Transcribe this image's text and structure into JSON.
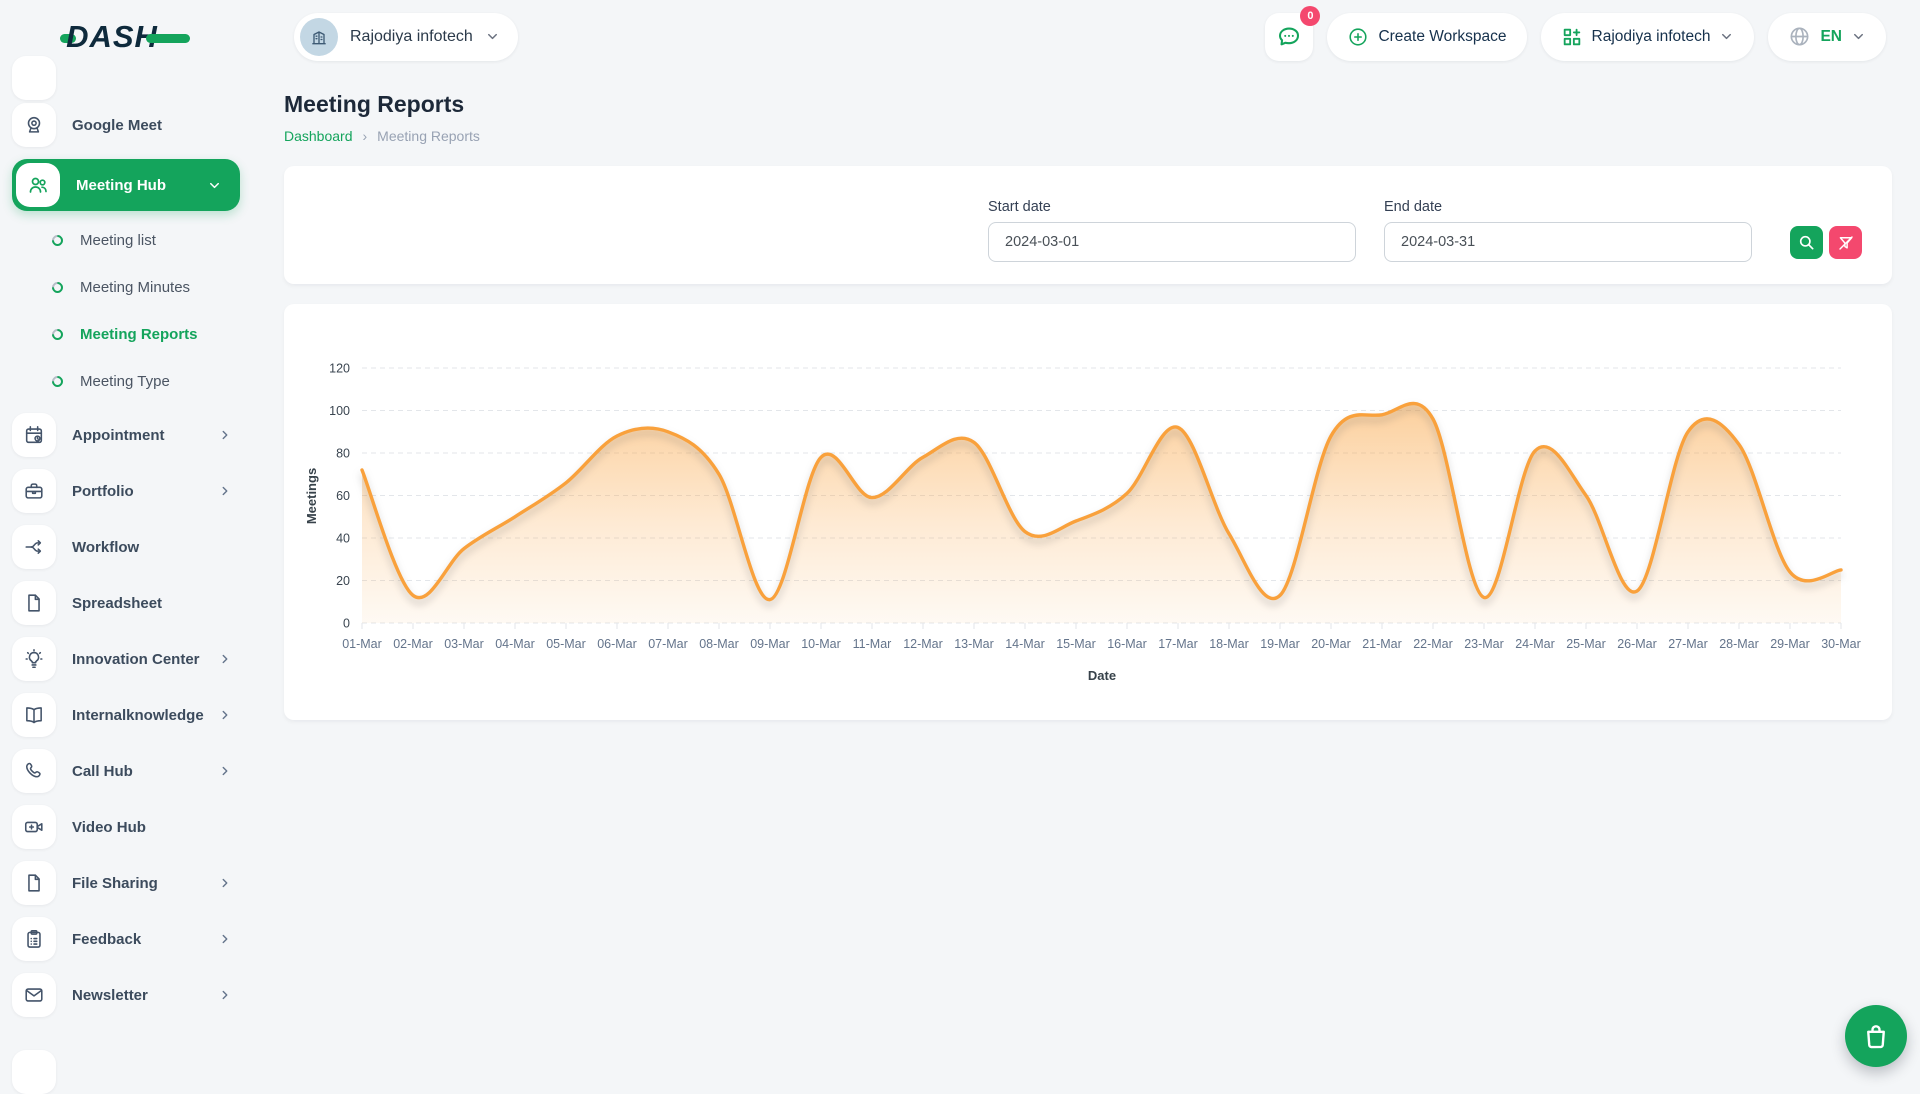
{
  "brand": {
    "name": "DASH"
  },
  "topbar": {
    "workspace_selector": {
      "label": "Rajodiya infotech",
      "avatar_icon": "building-icon"
    },
    "messages": {
      "icon": "chat-icon",
      "badge": "0"
    },
    "create_workspace_label": "Create Workspace",
    "company_dropdown": {
      "icon": "grid-plus-icon",
      "label": "Rajodiya infotech"
    },
    "language_dropdown": {
      "icon": "globe-icon",
      "label": "EN"
    }
  },
  "sidebar": {
    "items": [
      {
        "label": "Google Meet",
        "icon": "webcam-icon",
        "chevron": false
      },
      {
        "label": "Meeting Hub",
        "icon": "users-icon",
        "active": true,
        "expanded": true,
        "children": [
          {
            "label": "Meeting list",
            "active": false
          },
          {
            "label": "Meeting Minutes",
            "active": false
          },
          {
            "label": "Meeting Reports",
            "active": true
          },
          {
            "label": "Meeting Type",
            "active": false
          }
        ]
      },
      {
        "label": "Appointment",
        "icon": "calendar-icon",
        "chevron": true
      },
      {
        "label": "Portfolio",
        "icon": "briefcase-icon",
        "chevron": true
      },
      {
        "label": "Workflow",
        "icon": "workflow-icon",
        "chevron": false
      },
      {
        "label": "Spreadsheet",
        "icon": "file-icon",
        "chevron": false
      },
      {
        "label": "Innovation Center",
        "icon": "lightbulb-icon",
        "chevron": true
      },
      {
        "label": "Internalknowledge",
        "icon": "book-icon",
        "chevron": true
      },
      {
        "label": "Call Hub",
        "icon": "phone-icon",
        "chevron": true
      },
      {
        "label": "Video Hub",
        "icon": "video-icon",
        "chevron": false
      },
      {
        "label": "File Sharing",
        "icon": "file-icon",
        "chevron": true
      },
      {
        "label": "Feedback",
        "icon": "clipboard-icon",
        "chevron": true
      },
      {
        "label": "Newsletter",
        "icon": "mail-icon",
        "chevron": true
      }
    ]
  },
  "page": {
    "title": "Meeting Reports",
    "breadcrumb": [
      "Dashboard",
      "Meeting Reports"
    ]
  },
  "filter": {
    "start_date": {
      "label": "Start date",
      "value": "2024-03-01"
    },
    "end_date": {
      "label": "End date",
      "value": "2024-03-31"
    },
    "search_button_icon": "search-icon",
    "reset_button_icon": "filter-off-icon"
  },
  "chart_data": {
    "type": "area",
    "title": "",
    "xlabel": "Date",
    "ylabel": "Meetings",
    "ylim": [
      0,
      120
    ],
    "yticks": [
      0,
      20,
      40,
      60,
      80,
      100,
      120
    ],
    "grid": true,
    "legend": "none",
    "line_color": "#f9a13c",
    "categories": [
      "01-Mar",
      "02-Mar",
      "03-Mar",
      "04-Mar",
      "05-Mar",
      "06-Mar",
      "07-Mar",
      "08-Mar",
      "09-Mar",
      "10-Mar",
      "11-Mar",
      "12-Mar",
      "13-Mar",
      "14-Mar",
      "15-Mar",
      "16-Mar",
      "17-Mar",
      "18-Mar",
      "19-Mar",
      "20-Mar",
      "21-Mar",
      "22-Mar",
      "23-Mar",
      "24-Mar",
      "25-Mar",
      "26-Mar",
      "27-Mar",
      "28-Mar",
      "29-Mar",
      "30-Mar"
    ],
    "series": [
      {
        "name": "Meetings",
        "values": [
          72,
          13,
          35,
          50,
          66,
          88,
          90,
          70,
          11,
          78,
          59,
          78,
          85,
          43,
          48,
          61,
          92,
          42,
          13,
          88,
          98,
          96,
          12,
          81,
          60,
          15,
          90,
          84,
          24,
          25
        ]
      }
    ]
  },
  "fab": {
    "icon": "shopping-bag-icon"
  },
  "colors": {
    "primary_green": "#14a45c",
    "danger_pink": "#f4486e",
    "chart_orange": "#f9a13c"
  }
}
